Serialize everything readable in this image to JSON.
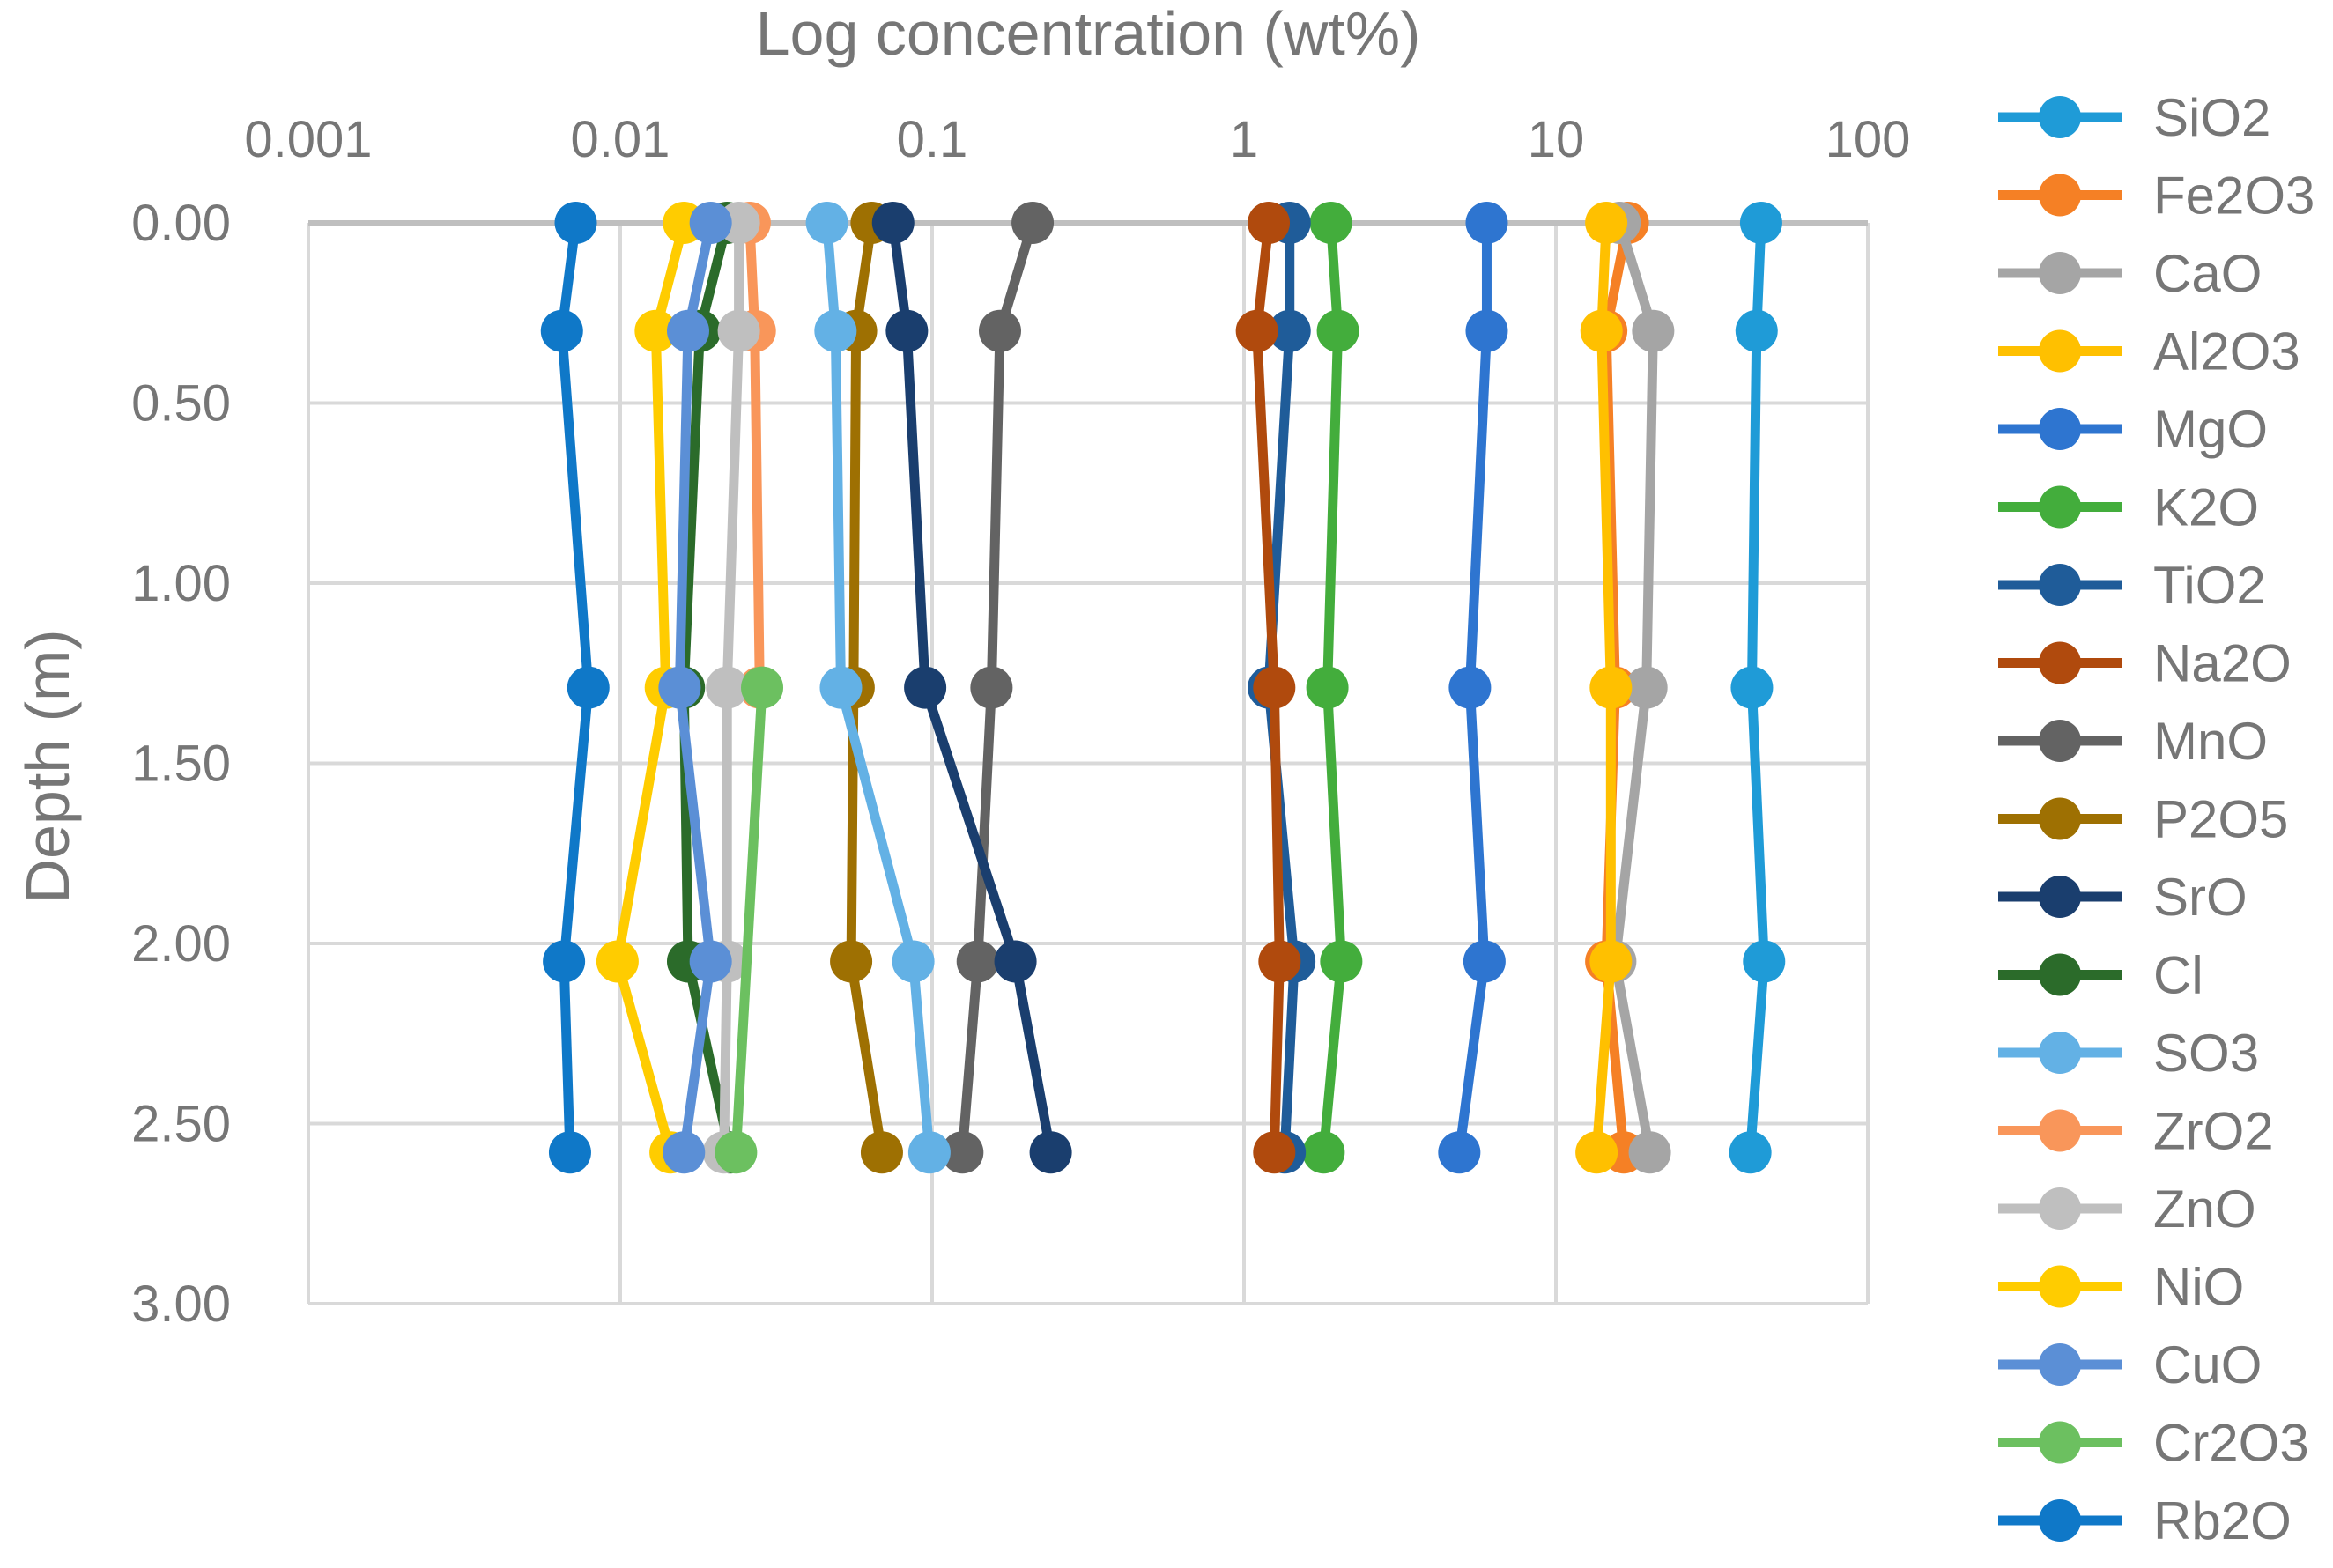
{
  "chart_data": {
    "type": "line",
    "xlabel": "Log concentration (wt%)",
    "ylabel": "Depth (m)",
    "x_scale": "log",
    "xlim": [
      0.001,
      100
    ],
    "ylim": [
      0,
      3
    ],
    "y_inverted": true,
    "x_ticks": [
      "0.001",
      "0.01",
      "0.1",
      "1",
      "10",
      "100"
    ],
    "y_ticks": [
      "0.00",
      "0.50",
      "1.00",
      "1.50",
      "2.00",
      "2.50",
      "3.00"
    ],
    "grid": true,
    "legend_position": "right",
    "depths": [
      0.0,
      0.3,
      1.29,
      2.05,
      2.58
    ],
    "series": [
      {
        "name": "SiO2",
        "color": "#1f9bd7",
        "values": [
          45.5,
          44.0,
          42.5,
          46.5,
          42.0
        ]
      },
      {
        "name": "Fe2O3",
        "color": "#f58025",
        "values": [
          17.0,
          14.5,
          15.5,
          14.5,
          16.5
        ]
      },
      {
        "name": "CaO",
        "color": "#a5a5a5",
        "values": [
          16.0,
          20.5,
          19.5,
          15.5,
          20.0
        ]
      },
      {
        "name": "Al2O3",
        "color": "#ffc000",
        "values": [
          14.5,
          14.0,
          15.0,
          15.0,
          13.5
        ]
      },
      {
        "name": "MgO",
        "color": "#2e75d0",
        "values": [
          6.0,
          6.0,
          5.3,
          5.9,
          4.9
        ]
      },
      {
        "name": "K2O",
        "color": "#43ad3c",
        "values": [
          1.9,
          2.0,
          1.85,
          2.05,
          1.8
        ]
      },
      {
        "name": "TiO2",
        "color": "#1f5c99",
        "values": [
          1.4,
          1.4,
          1.2,
          1.45,
          1.35
        ]
      },
      {
        "name": "Na2O",
        "color": "#b04a0d",
        "values": [
          1.2,
          1.1,
          1.25,
          1.3,
          1.25
        ]
      },
      {
        "name": "MnO",
        "color": "#636363",
        "values": [
          0.21,
          0.165,
          0.155,
          0.14,
          0.125
        ]
      },
      {
        "name": "P2O5",
        "color": "#9e7002",
        "values": [
          0.064,
          0.057,
          0.056,
          0.055,
          0.069
        ]
      },
      {
        "name": "SrO",
        "color": "#1a3e6e",
        "values": [
          0.075,
          0.083,
          0.095,
          0.185,
          0.24
        ]
      },
      {
        "name": "Cl",
        "color": "#2b6b2a",
        "values": [
          0.022,
          0.018,
          0.016,
          0.0165,
          0.0225
        ]
      },
      {
        "name": "SO3",
        "color": "#63b1e5",
        "values": [
          0.046,
          0.049,
          0.051,
          0.087,
          0.098
        ]
      },
      {
        "name": "ZrO2",
        "color": "#f9965a",
        "values": [
          0.026,
          0.027,
          0.028,
          0.0,
          0.0
        ]
      },
      {
        "name": "ZnO",
        "color": "#bfbfbf",
        "values": [
          0.024,
          0.024,
          0.022,
          0.022,
          0.0215
        ]
      },
      {
        "name": "NiO",
        "color": "#ffcc00",
        "values": [
          0.016,
          0.013,
          0.014,
          0.0098,
          0.0145
        ]
      },
      {
        "name": "CuO",
        "color": "#5b8fd6",
        "values": [
          0.0195,
          0.0165,
          0.0155,
          0.0195,
          0.016
        ]
      },
      {
        "name": "Cr2O3",
        "color": "#6cc060",
        "values": [
          0.0,
          0.0,
          0.0285,
          0.0,
          0.0235
        ]
      },
      {
        "name": "Rb2O",
        "color": "#0f78c8",
        "values": [
          0.0072,
          0.0065,
          0.0079,
          0.0066,
          0.0069
        ]
      }
    ]
  }
}
